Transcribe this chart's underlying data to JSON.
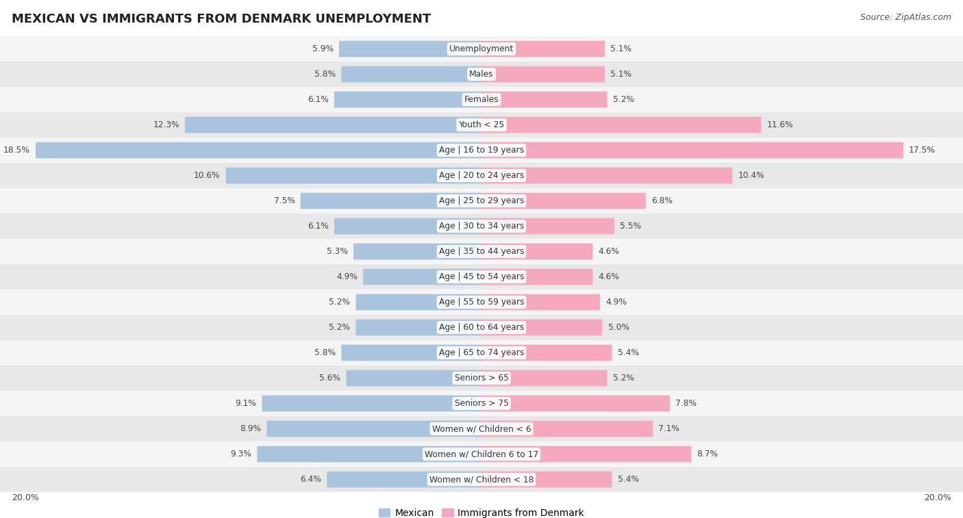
{
  "title": "MEXICAN VS IMMIGRANTS FROM DENMARK UNEMPLOYMENT",
  "source": "Source: ZipAtlas.com",
  "categories": [
    "Unemployment",
    "Males",
    "Females",
    "Youth < 25",
    "Age | 16 to 19 years",
    "Age | 20 to 24 years",
    "Age | 25 to 29 years",
    "Age | 30 to 34 years",
    "Age | 35 to 44 years",
    "Age | 45 to 54 years",
    "Age | 55 to 59 years",
    "Age | 60 to 64 years",
    "Age | 65 to 74 years",
    "Seniors > 65",
    "Seniors > 75",
    "Women w/ Children < 6",
    "Women w/ Children 6 to 17",
    "Women w/ Children < 18"
  ],
  "mexican": [
    5.9,
    5.8,
    6.1,
    12.3,
    18.5,
    10.6,
    7.5,
    6.1,
    5.3,
    4.9,
    5.2,
    5.2,
    5.8,
    5.6,
    9.1,
    8.9,
    9.3,
    6.4
  ],
  "denmark": [
    5.1,
    5.1,
    5.2,
    11.6,
    17.5,
    10.4,
    6.8,
    5.5,
    4.6,
    4.6,
    4.9,
    5.0,
    5.4,
    5.2,
    7.8,
    7.1,
    8.7,
    5.4
  ],
  "mexican_color": "#aac4de",
  "denmark_color": "#f5a8be",
  "row_bg_light": "#f5f5f5",
  "row_bg_dark": "#e8e8e8",
  "max_val": 20.0,
  "text_color": "#444444",
  "cat_color": "#333333",
  "legend_mexican": "Mexican",
  "legend_denmark": "Immigrants from Denmark",
  "axis_label": "20.0%",
  "title_fontsize": 13,
  "label_fontsize": 8.8,
  "cat_fontsize": 8.8
}
